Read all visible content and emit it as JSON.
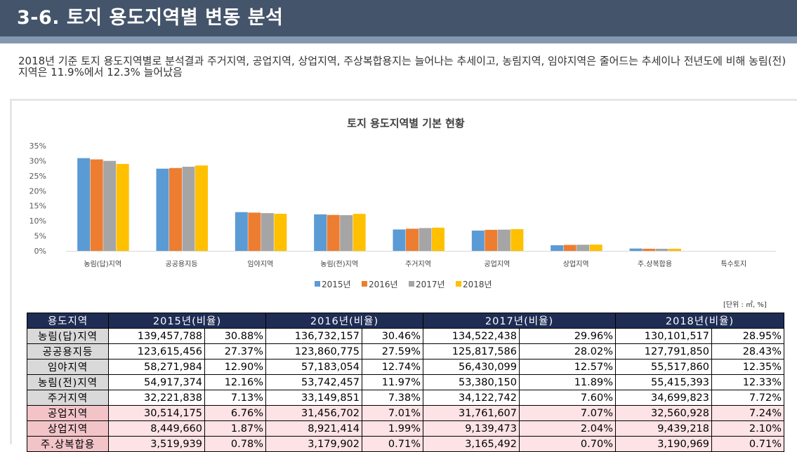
{
  "header": {
    "title": "3-6. 토지 용도지역별 변동 분석"
  },
  "intro": "2018년 기준 토지 용도지역별로 분석결과 주거지역, 공업지역, 상업지역, 주상복합용지는 늘어나는 추세이고, 농림지역, 임야지역은 줄어드는 추세이나  전년도에 비해 농림(전)지역은 11.9%에서 12.3% 늘어났음",
  "chart_data": {
    "type": "bar",
    "title": "토지 용도지역별 기본 현황",
    "categories": [
      "농림(답)지역",
      "공공용지등",
      "임야지역",
      "농림(전)지역",
      "주거지역",
      "공업지역",
      "상업지역",
      "주.상복합용",
      "특수토지"
    ],
    "series": [
      {
        "name": "2015년",
        "color": "#5b9bd5",
        "values": [
          30.88,
          27.37,
          12.9,
          12.16,
          7.13,
          6.76,
          1.87,
          0.78,
          0.0
        ]
      },
      {
        "name": "2016년",
        "color": "#ed7d31",
        "values": [
          30.46,
          27.59,
          12.74,
          11.97,
          7.38,
          7.01,
          1.99,
          0.71,
          0.0
        ]
      },
      {
        "name": "2017년",
        "color": "#a5a5a5",
        "values": [
          29.96,
          28.02,
          12.57,
          11.89,
          7.6,
          7.07,
          2.04,
          0.7,
          0.0
        ]
      },
      {
        "name": "2018년",
        "color": "#ffc000",
        "values": [
          28.95,
          28.43,
          12.35,
          12.33,
          7.72,
          7.24,
          2.1,
          0.71,
          0.0
        ]
      }
    ],
    "ylim": [
      0,
      35
    ],
    "yticks": [
      "0%",
      "5%",
      "10%",
      "15%",
      "20%",
      "25%",
      "30%",
      "35%"
    ],
    "grid": false,
    "legend_position": "bottom"
  },
  "table": {
    "unit_note": "[단위 : ㎡, %]",
    "headers": [
      "용도지역",
      "2015년(비율)",
      "2016년(비율)",
      "2017년(비율)",
      "2018년(비율)"
    ],
    "rows": [
      {
        "name": "농림(답)지역",
        "cells": [
          "139,457,788",
          "30.88%",
          "136,732,157",
          "30.46%",
          "134,522,438",
          "29.96%",
          "130,101,517",
          "28.95%"
        ],
        "highlight": false
      },
      {
        "name": "공공용지등",
        "cells": [
          "123,615,456",
          "27.37%",
          "123,860,775",
          "27.59%",
          "125,817,586",
          "28.02%",
          "127,791,850",
          "28.43%"
        ],
        "highlight": false
      },
      {
        "name": "임야지역",
        "cells": [
          "58,271,984",
          "12.90%",
          "57,183,054",
          "12.74%",
          "56,430,099",
          "12.57%",
          "55,517,860",
          "12.35%"
        ],
        "highlight": false
      },
      {
        "name": "농림(전)지역",
        "cells": [
          "54,917,374",
          "12.16%",
          "53,742,457",
          "11.97%",
          "53,380,150",
          "11.89%",
          "55,415,393",
          "12.33%"
        ],
        "highlight": false
      },
      {
        "name": "주거지역",
        "cells": [
          "32,221,838",
          "7.13%",
          "33,149,851",
          "7.38%",
          "34,122,742",
          "7.60%",
          "34,699,823",
          "7.72%"
        ],
        "highlight": false
      },
      {
        "name": "공업지역",
        "cells": [
          "30,514,175",
          "6.76%",
          "31,456,702",
          "7.01%",
          "31,761,607",
          "7.07%",
          "32,560,928",
          "7.24%"
        ],
        "highlight": true
      },
      {
        "name": "상업지역",
        "cells": [
          "8,449,660",
          "1.87%",
          "8,921,414",
          "1.99%",
          "9,139,473",
          "2.04%",
          "9,439,218",
          "2.10%"
        ],
        "highlight": true
      },
      {
        "name": "주.상복합용",
        "cells": [
          "3,519,939",
          "0.78%",
          "3,179,902",
          "0.71%",
          "3,165,492",
          "0.70%",
          "3,190,969",
          "0.71%"
        ],
        "highlight": true
      }
    ]
  }
}
